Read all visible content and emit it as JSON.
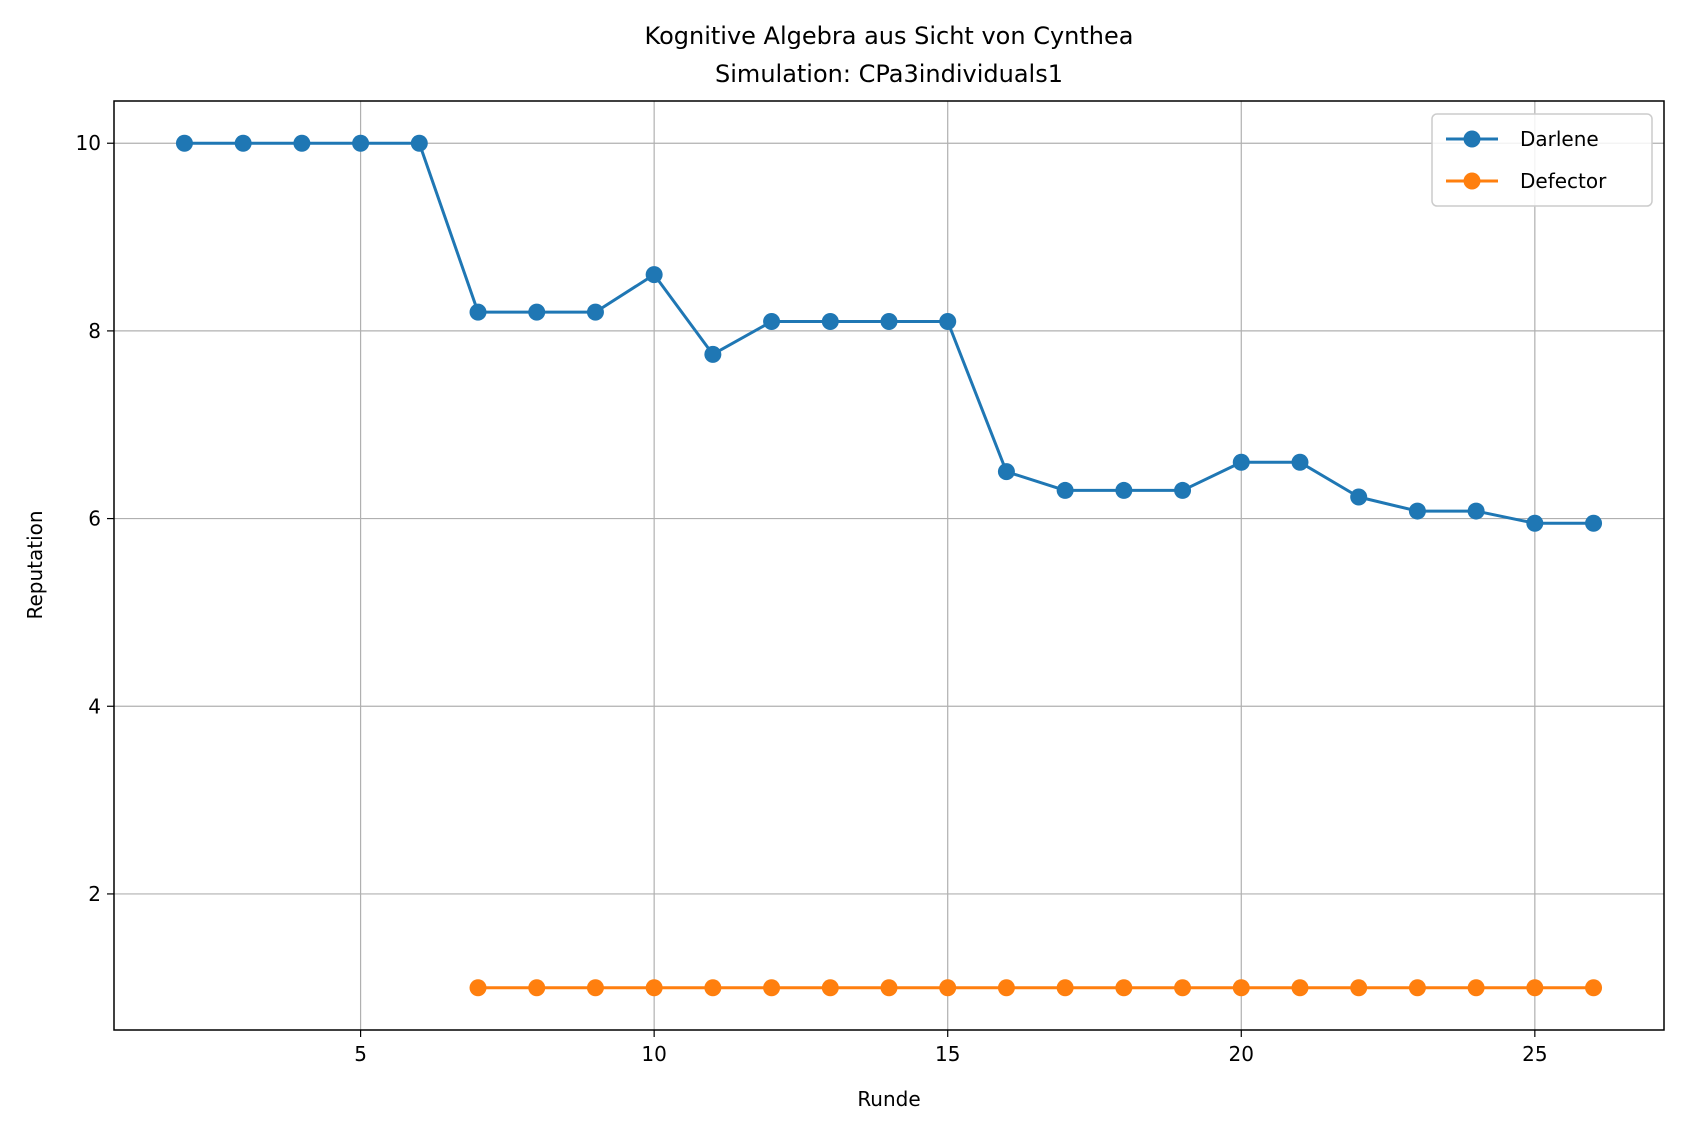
{
  "chart_data": {
    "type": "line",
    "title": "Kognitive Algebra aus Sicht von Cynthea",
    "subtitle": "Simulation: CPa3individuals1",
    "xlabel": "Runde",
    "ylabel": "Reputation",
    "xlim": [
      0.8,
      27.2
    ],
    "ylim": [
      0.55,
      10.45
    ],
    "xticks": [
      5,
      10,
      15,
      20,
      25
    ],
    "yticks": [
      2,
      4,
      6,
      8,
      10
    ],
    "grid": true,
    "legend_position": "top-right",
    "series": [
      {
        "name": "Darlene",
        "color": "#1f77b4",
        "marker": "circle",
        "x": [
          2,
          3,
          4,
          5,
          6,
          7,
          8,
          9,
          10,
          11,
          12,
          13,
          14,
          15,
          16,
          17,
          18,
          19,
          20,
          21,
          22,
          23,
          24,
          25,
          26
        ],
        "y": [
          10,
          10,
          10,
          10,
          10,
          8.2,
          8.2,
          8.2,
          8.6,
          7.75,
          8.1,
          8.1,
          8.1,
          8.1,
          6.5,
          6.3,
          6.3,
          6.3,
          6.6,
          6.6,
          6.23,
          6.08,
          6.08,
          5.95,
          5.95
        ]
      },
      {
        "name": "Defector",
        "color": "#ff7f0e",
        "marker": "circle",
        "x": [
          7,
          8,
          9,
          10,
          11,
          12,
          13,
          14,
          15,
          16,
          17,
          18,
          19,
          20,
          21,
          22,
          23,
          24,
          25,
          26
        ],
        "y": [
          1,
          1,
          1,
          1,
          1,
          1,
          1,
          1,
          1,
          1,
          1,
          1,
          1,
          1,
          1,
          1,
          1,
          1,
          1,
          1
        ]
      }
    ]
  }
}
